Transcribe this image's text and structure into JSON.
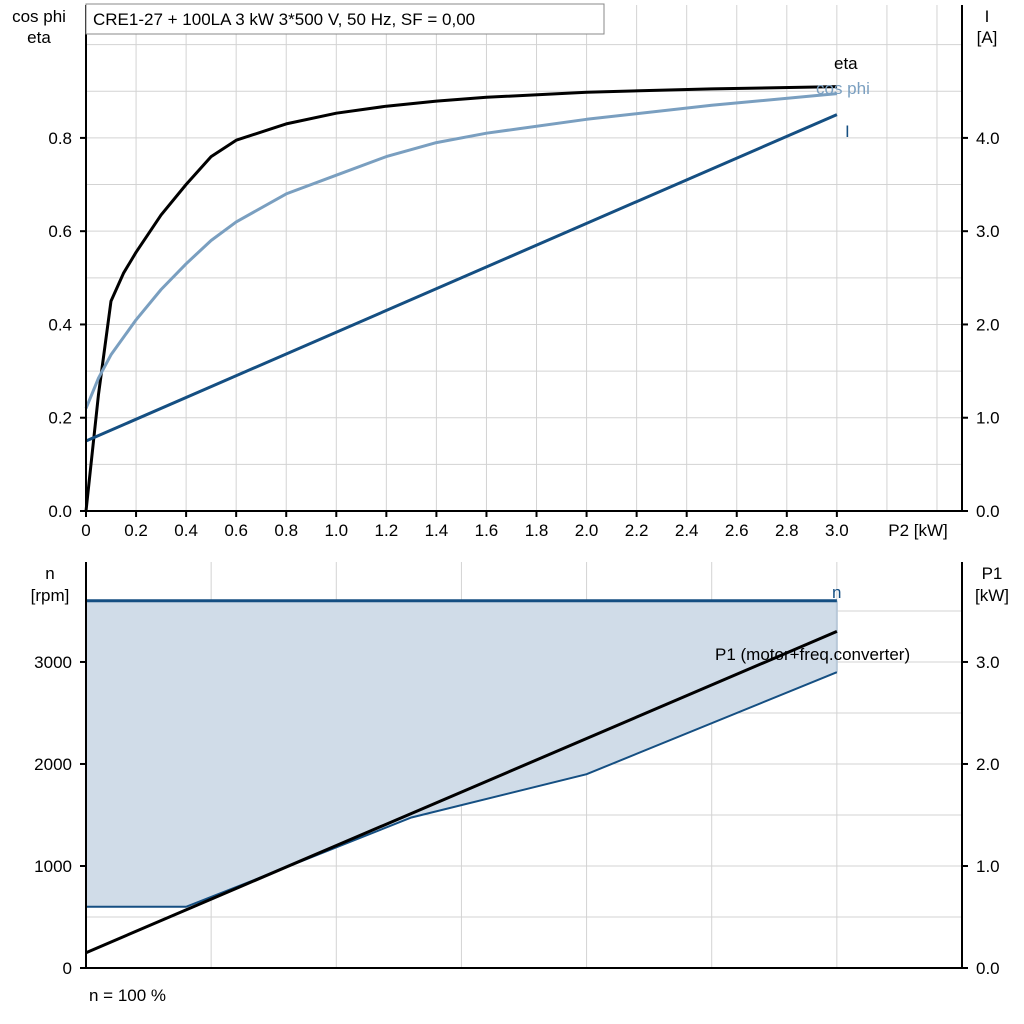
{
  "chart_data": [
    {
      "type": "line",
      "title": "CRE1-27 + 100LA   3 kW   3*500 V, 50 Hz, SF = 0,00",
      "xlabel": "P2 [kW]",
      "ylabel": [
        "cos phi",
        "eta"
      ],
      "y2label": [
        "I",
        "[A]"
      ],
      "xlim": [
        0,
        3.5
      ],
      "ylim": [
        0,
        1.085
      ],
      "y2lim": [
        0,
        5.425
      ],
      "xticks": [
        "0",
        "0.2",
        "0.4",
        "0.6",
        "0.8",
        "1.0",
        "1.2",
        "1.4",
        "1.6",
        "1.8",
        "2.0",
        "2.2",
        "2.4",
        "2.6",
        "2.8",
        "3.0"
      ],
      "yticks": [
        "0.0",
        "0.2",
        "0.4",
        "0.6",
        "0.8"
      ],
      "y2ticks": [
        "0.0",
        "1.0",
        "2.0",
        "3.0",
        "4.0"
      ],
      "grid": true,
      "series": [
        {
          "name": "eta",
          "axis": "left",
          "color": "#000000",
          "x": [
            0,
            0.05,
            0.1,
            0.15,
            0.2,
            0.3,
            0.4,
            0.5,
            0.6,
            0.8,
            1.0,
            1.2,
            1.4,
            1.6,
            2.0,
            2.5,
            3.0
          ],
          "y": [
            0,
            0.25,
            0.45,
            0.51,
            0.555,
            0.635,
            0.7,
            0.76,
            0.795,
            0.83,
            0.853,
            0.868,
            0.879,
            0.887,
            0.898,
            0.905,
            0.91
          ]
        },
        {
          "name": "cos phi",
          "axis": "left",
          "color": "#7a9fc0",
          "x": [
            0,
            0.05,
            0.1,
            0.2,
            0.3,
            0.4,
            0.5,
            0.6,
            0.8,
            1.0,
            1.2,
            1.4,
            1.6,
            2.0,
            2.5,
            3.0
          ],
          "y": [
            0.22,
            0.285,
            0.335,
            0.41,
            0.475,
            0.53,
            0.58,
            0.62,
            0.68,
            0.72,
            0.76,
            0.79,
            0.81,
            0.84,
            0.87,
            0.895
          ]
        },
        {
          "name": "I",
          "axis": "right",
          "color": "#154f82",
          "x": [
            0,
            3.0
          ],
          "y": [
            0.75,
            4.25
          ]
        }
      ]
    },
    {
      "type": "area",
      "xlim": [
        0,
        3.5
      ],
      "ylabel": [
        "n",
        "[rpm]"
      ],
      "y2label": [
        "P1",
        "[kW]"
      ],
      "ylim": [
        0,
        3980
      ],
      "y2lim": [
        0,
        3.98
      ],
      "yticks": [
        "0",
        "1000",
        "2000",
        "3000"
      ],
      "y2ticks": [
        "0.0",
        "1.0",
        "2.0",
        "3.0"
      ],
      "grid": true,
      "footnote": "n = 100 %",
      "series": [
        {
          "name": "n",
          "axis": "left",
          "color": "#154f82",
          "x": [
            0,
            3.0
          ],
          "y": [
            3600,
            3600
          ]
        },
        {
          "axis": "left",
          "color": "#154f82",
          "role": "min-speed boundary",
          "x": [
            0,
            0.4,
            0.7,
            1.3,
            2.0,
            3.0
          ],
          "y": [
            600,
            600,
            890,
            1475,
            1900,
            2900
          ]
        },
        {
          "name": "P1 (motor+freq.converter)",
          "axis": "right",
          "color": "#000000",
          "x": [
            0,
            3.0
          ],
          "y": [
            0.15,
            3.3
          ]
        }
      ],
      "fill_color": "#d0dce8"
    }
  ]
}
